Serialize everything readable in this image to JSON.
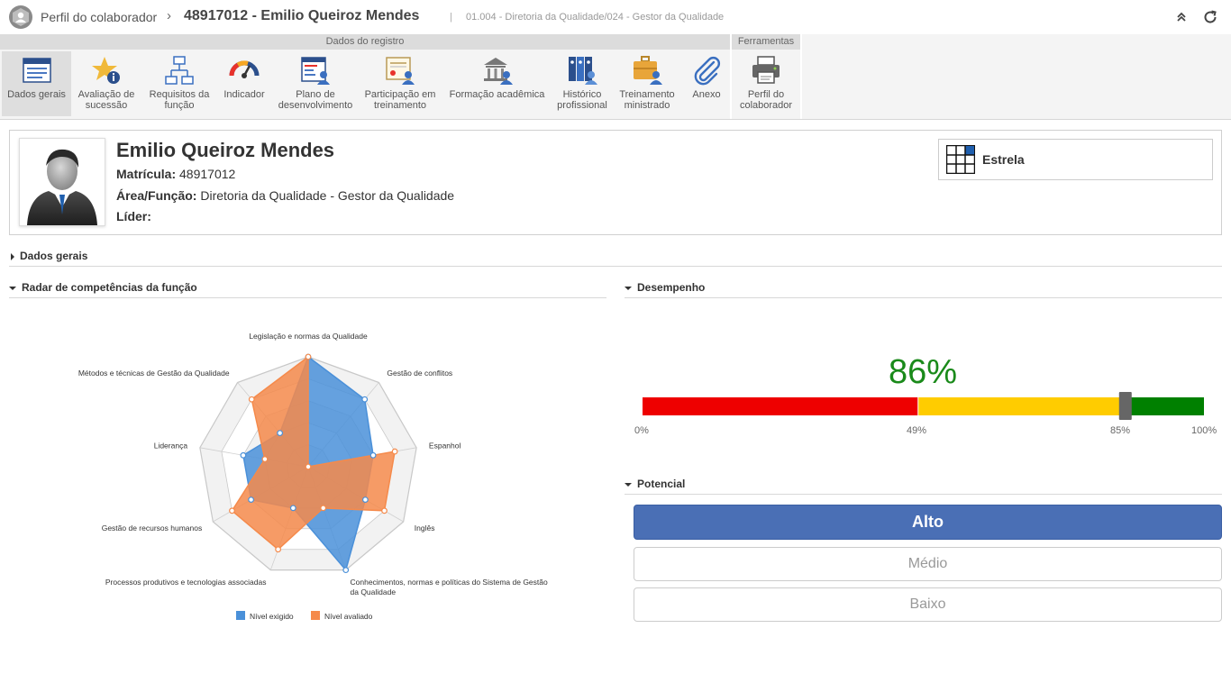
{
  "header": {
    "app_name": "Perfil do colaborador",
    "separator": "›",
    "title": "48917012 - Emilio Queiroz Mendes",
    "divider": "|",
    "subtitle": "01.004 - Diretoria da Qualidade/024 - Gestor da Qualidade"
  },
  "ribbon": {
    "group_registro": "Dados do registro",
    "group_ferramentas": "Ferramentas",
    "buttons": [
      {
        "l1": "Dados gerais",
        "l2": "",
        "icon": "general-data-icon"
      },
      {
        "l1": "Avaliação de",
        "l2": "sucessão",
        "icon": "star-info-icon"
      },
      {
        "l1": "Requisitos da",
        "l2": "função",
        "icon": "org-chart-icon"
      },
      {
        "l1": "Indicador",
        "l2": "",
        "icon": "gauge-icon"
      },
      {
        "l1": "Plano de",
        "l2": "desenvolvimento",
        "icon": "plan-user-icon"
      },
      {
        "l1": "Participação em",
        "l2": "treinamento",
        "icon": "certificate-user-icon"
      },
      {
        "l1": "Formação acadêmica",
        "l2": "",
        "icon": "academic-building-icon"
      },
      {
        "l1": "Histórico",
        "l2": "profissional",
        "icon": "binders-user-icon"
      },
      {
        "l1": "Treinamento",
        "l2": "ministrado",
        "icon": "briefcase-user-icon"
      },
      {
        "l1": "Anexo",
        "l2": "",
        "icon": "paperclip-icon"
      },
      {
        "l1": "Perfil do",
        "l2": "colaborador",
        "icon": "printer-icon"
      }
    ]
  },
  "profile": {
    "name": "Emilio Queiroz Mendes",
    "matricula_label": "Matrícula:",
    "matricula_value": "48917012",
    "area_label": "Área/Função:",
    "area_value": "Diretoria da Qualidade - Gestor da Qualidade",
    "lider_label": "Líder:",
    "lider_value": "",
    "estrela_label": "Estrela"
  },
  "sections": {
    "dados_gerais": "Dados gerais",
    "radar": "Radar de competências da função",
    "desempenho": "Desempenho",
    "potencial": "Potencial"
  },
  "chart_data": {
    "type": "radar",
    "categories": [
      "Legislação e normas da Qualidade",
      "Gestão de conflitos",
      "Espanhol",
      "Inglês",
      "Conhecimentos, normas e políticas do Sistema de Gestão da Qualidade",
      "Processos produtivos e tecnologias associadas",
      "Gestão de recursos humanos",
      "Liderança",
      "Métodos e técnicas de Gestão da Qualidade"
    ],
    "rmax": 5,
    "series": [
      {
        "name": "Nível exigido",
        "color": "#4a90d9",
        "values": [
          5,
          4,
          3,
          3,
          5,
          2,
          3,
          3,
          2
        ]
      },
      {
        "name": "Nível avaliado",
        "color": "#f58a4b",
        "values": [
          5,
          0,
          4,
          4,
          2,
          4,
          4,
          2,
          4
        ]
      }
    ]
  },
  "performance": {
    "value_text": "86%",
    "value": 86,
    "thresholds": [
      49,
      85
    ],
    "ticks": [
      "0%",
      "49%",
      "85%",
      "100%"
    ],
    "colors": {
      "low": "#ee0000",
      "mid": "#ffcc00",
      "high": "#008000"
    }
  },
  "potential": {
    "options": [
      "Alto",
      "Médio",
      "Baixo"
    ],
    "selected": "Alto"
  }
}
